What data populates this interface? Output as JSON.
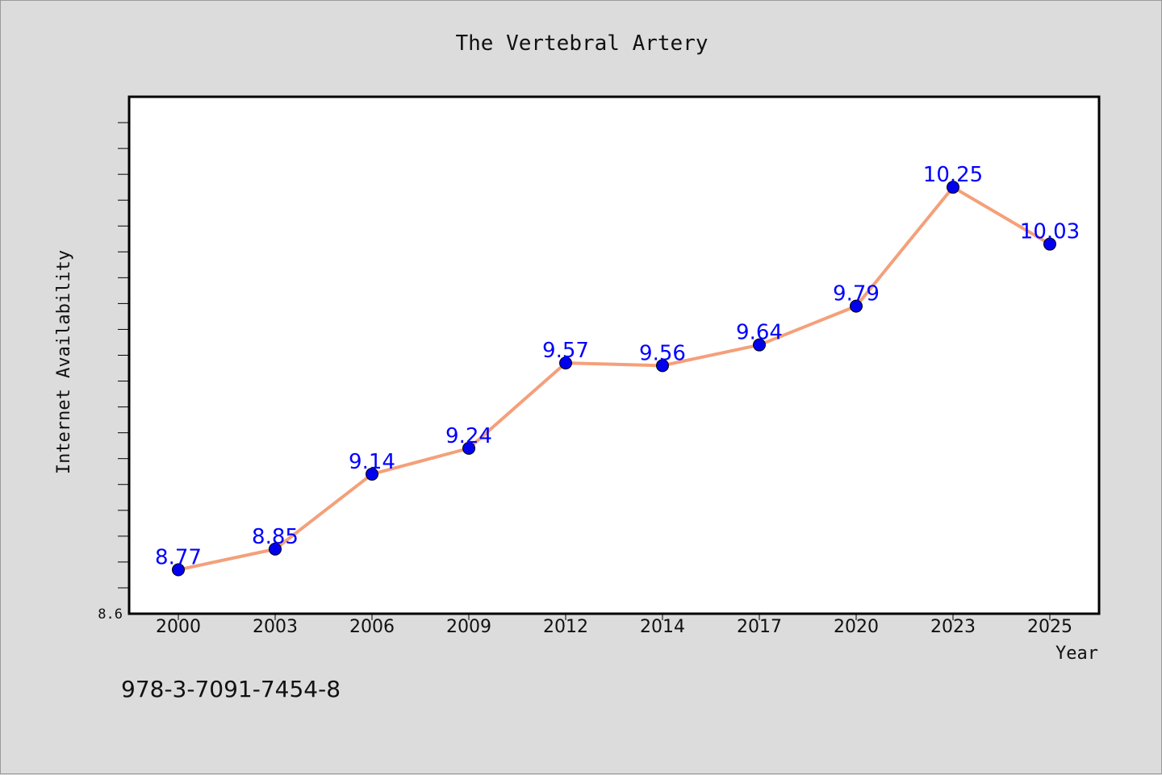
{
  "colors": {
    "background": "#dcdcdc",
    "plot_background": "#ffffff",
    "line": "#f4a07a",
    "marker": "#0000ee",
    "data_label": "#0000ff"
  },
  "footer": {
    "isbn": "978-3-7091-7454-8"
  },
  "chart_data": {
    "type": "line",
    "title": "The Vertebral Artery",
    "xlabel": "Year",
    "ylabel": "Internet Availability",
    "categories": [
      "2000",
      "2003",
      "2006",
      "2009",
      "2012",
      "2014",
      "2017",
      "2020",
      "2023",
      "2025"
    ],
    "series": [
      {
        "values": [
          8.77,
          8.85,
          9.14,
          9.24,
          9.57,
          9.56,
          9.64,
          9.79,
          10.25,
          10.03
        ]
      }
    ],
    "data_labels": [
      "8.77",
      "8.85",
      "9.14",
      "9.24",
      "9.57",
      "9.56",
      "9.64",
      "9.79",
      "10.25",
      "10.03"
    ],
    "ylim": [
      8.6,
      10.6
    ],
    "ytick_labels": [
      "8.6"
    ],
    "grid": false,
    "legend": "none"
  }
}
